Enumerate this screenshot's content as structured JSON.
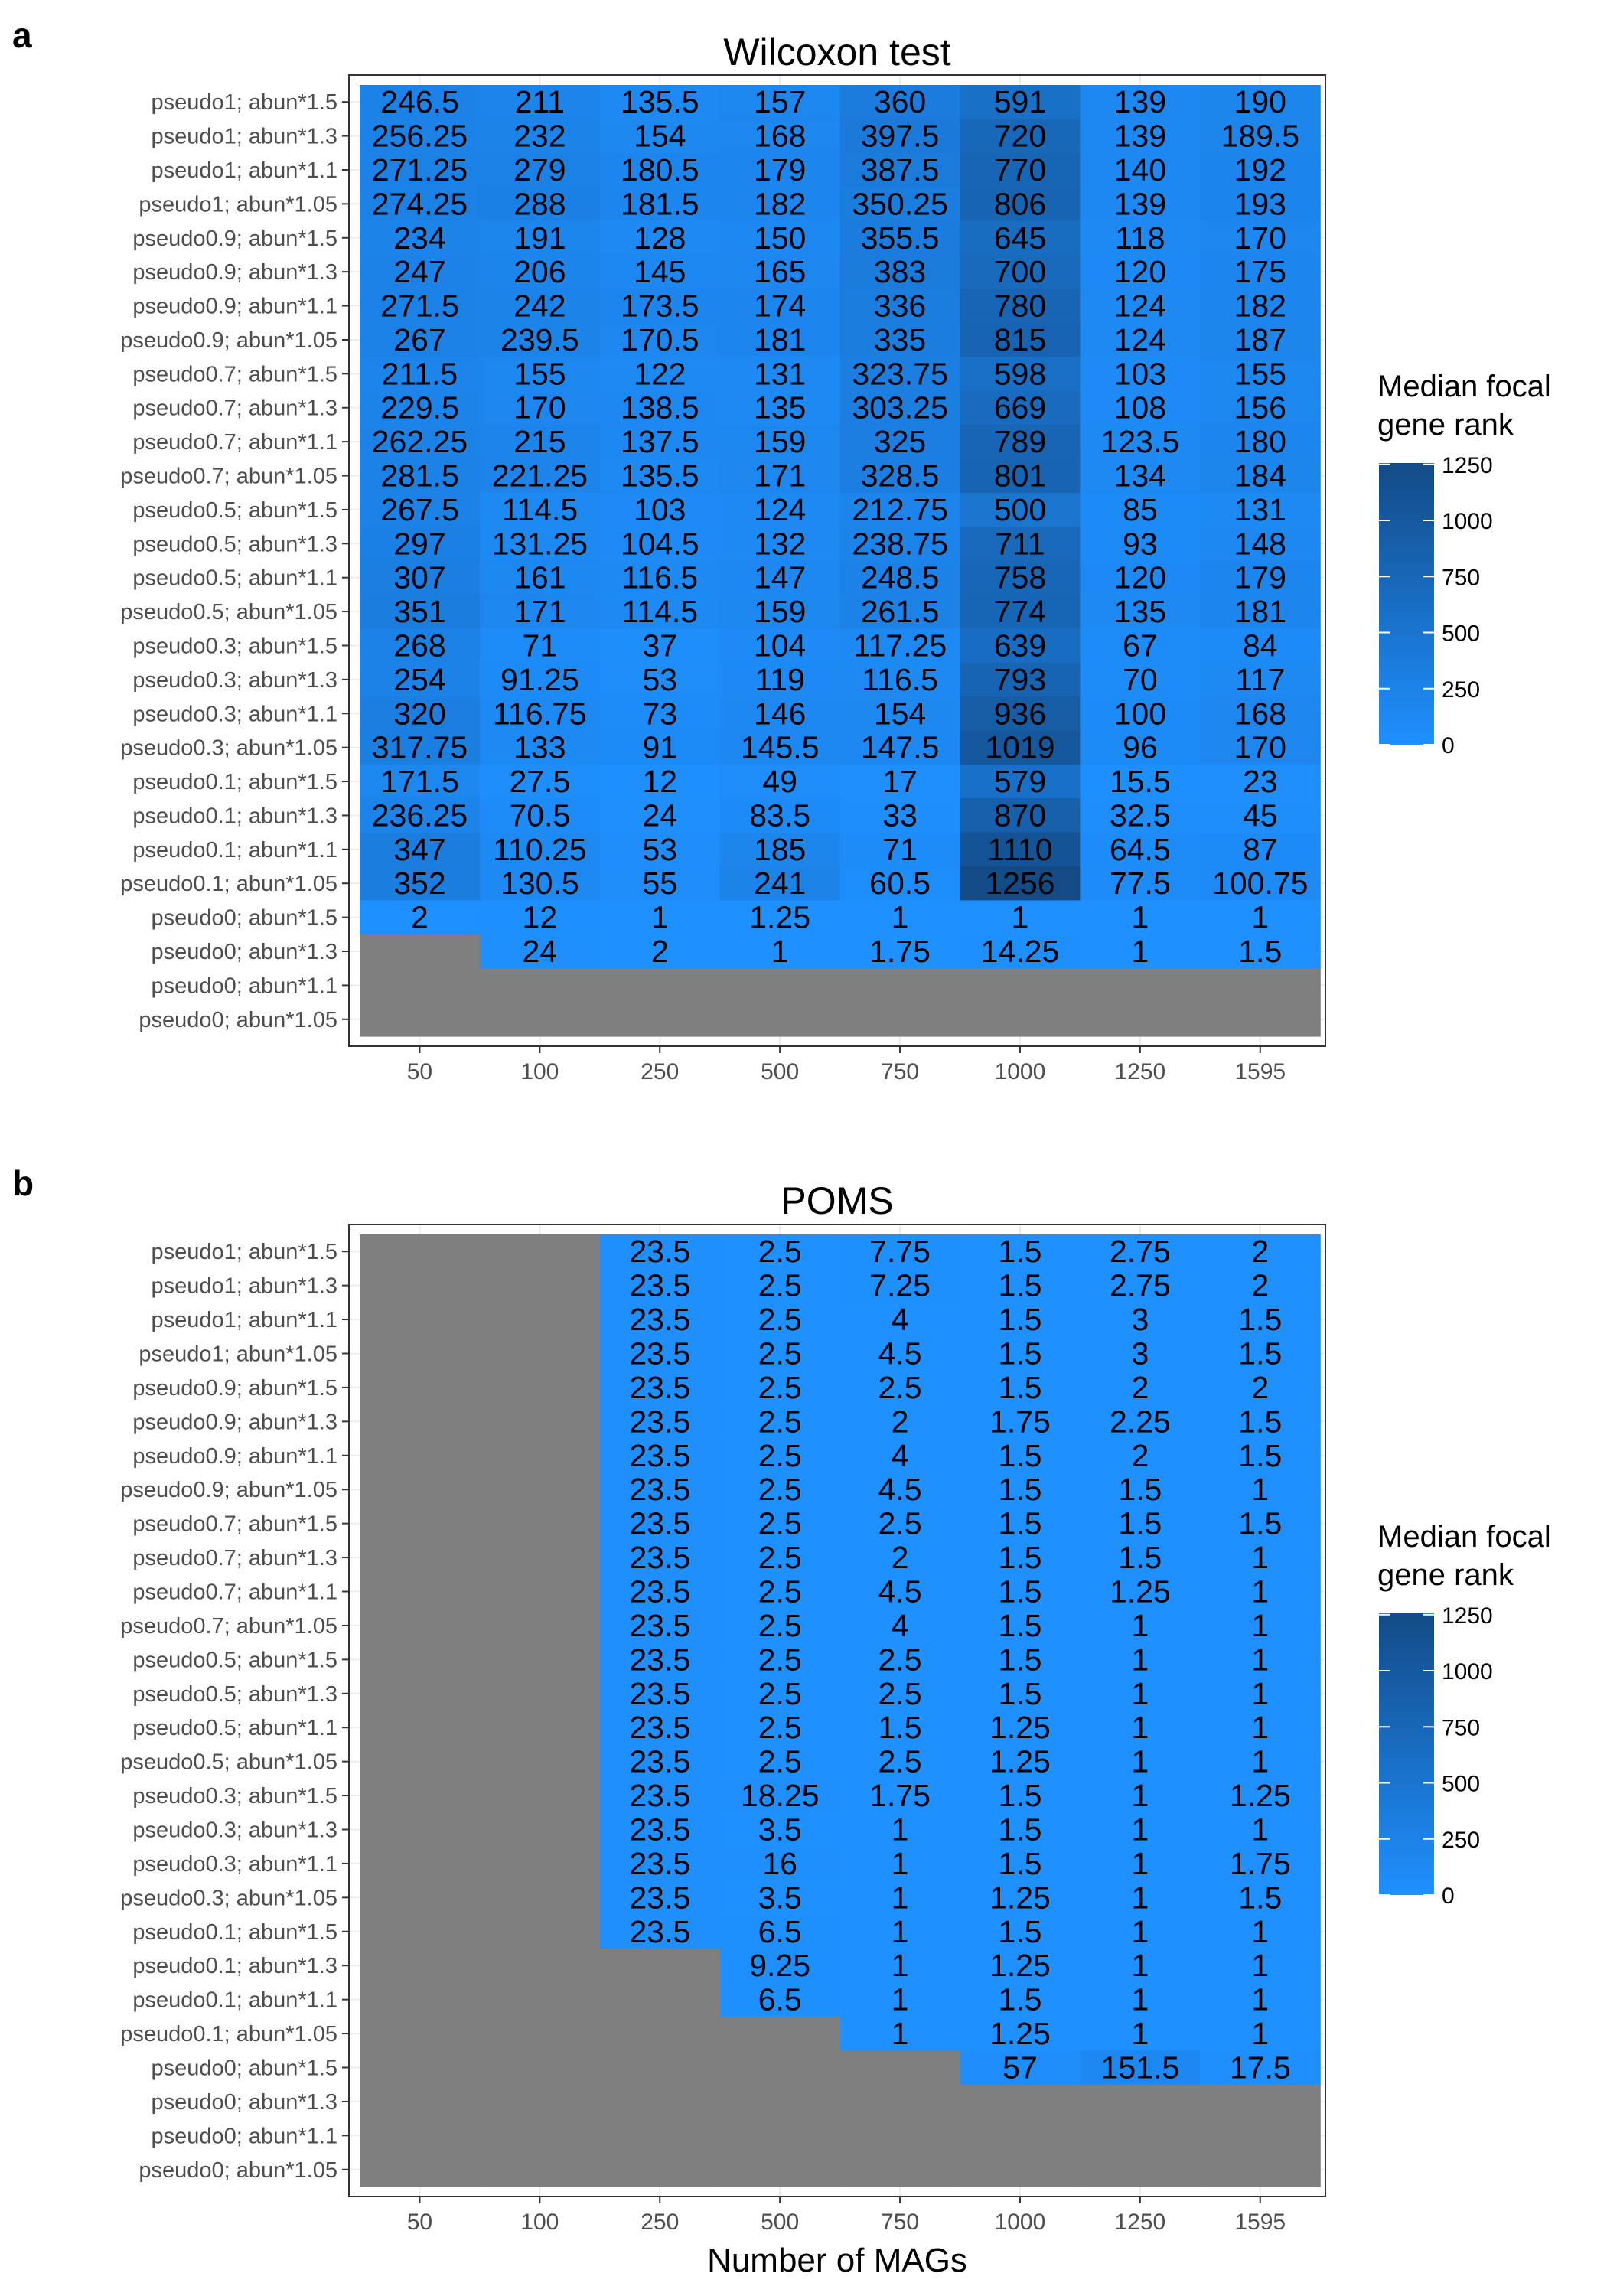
{
  "chart_data": [
    {
      "type": "heatmap",
      "panel": "a",
      "title": "Wilcoxon test",
      "xlabel": "",
      "x_categories": [
        "50",
        "100",
        "250",
        "500",
        "750",
        "1000",
        "1250",
        "1595"
      ],
      "y_categories": [
        "pseudo1; abun*1.5",
        "pseudo1; abun*1.3",
        "pseudo1; abun*1.1",
        "pseudo1; abun*1.05",
        "pseudo0.9; abun*1.5",
        "pseudo0.9; abun*1.3",
        "pseudo0.9; abun*1.1",
        "pseudo0.9; abun*1.05",
        "pseudo0.7; abun*1.5",
        "pseudo0.7; abun*1.3",
        "pseudo0.7; abun*1.1",
        "pseudo0.7; abun*1.05",
        "pseudo0.5; abun*1.5",
        "pseudo0.5; abun*1.3",
        "pseudo0.5; abun*1.1",
        "pseudo0.5; abun*1.05",
        "pseudo0.3; abun*1.5",
        "pseudo0.3; abun*1.3",
        "pseudo0.3; abun*1.1",
        "pseudo0.3; abun*1.05",
        "pseudo0.1; abun*1.5",
        "pseudo0.1; abun*1.3",
        "pseudo0.1; abun*1.1",
        "pseudo0.1; abun*1.05",
        "pseudo0; abun*1.5",
        "pseudo0; abun*1.3",
        "pseudo0; abun*1.1",
        "pseudo0; abun*1.05"
      ],
      "values": [
        [
          "246.5",
          "211",
          "135.5",
          "157",
          "360",
          "591",
          "139",
          "190"
        ],
        [
          "256.25",
          "232",
          "154",
          "168",
          "397.5",
          "720",
          "139",
          "189.5"
        ],
        [
          "271.25",
          "279",
          "180.5",
          "179",
          "387.5",
          "770",
          "140",
          "192"
        ],
        [
          "274.25",
          "288",
          "181.5",
          "182",
          "350.25",
          "806",
          "139",
          "193"
        ],
        [
          "234",
          "191",
          "128",
          "150",
          "355.5",
          "645",
          "118",
          "170"
        ],
        [
          "247",
          "206",
          "145",
          "165",
          "383",
          "700",
          "120",
          "175"
        ],
        [
          "271.5",
          "242",
          "173.5",
          "174",
          "336",
          "780",
          "124",
          "182"
        ],
        [
          "267",
          "239.5",
          "170.5",
          "181",
          "335",
          "815",
          "124",
          "187"
        ],
        [
          "211.5",
          "155",
          "122",
          "131",
          "323.75",
          "598",
          "103",
          "155"
        ],
        [
          "229.5",
          "170",
          "138.5",
          "135",
          "303.25",
          "669",
          "108",
          "156"
        ],
        [
          "262.25",
          "215",
          "137.5",
          "159",
          "325",
          "789",
          "123.5",
          "180"
        ],
        [
          "281.5",
          "221.25",
          "135.5",
          "171",
          "328.5",
          "801",
          "134",
          "184"
        ],
        [
          "267.5",
          "114.5",
          "103",
          "124",
          "212.75",
          "500",
          "85",
          "131"
        ],
        [
          "297",
          "131.25",
          "104.5",
          "132",
          "238.75",
          "711",
          "93",
          "148"
        ],
        [
          "307",
          "161",
          "116.5",
          "147",
          "248.5",
          "758",
          "120",
          "179"
        ],
        [
          "351",
          "171",
          "114.5",
          "159",
          "261.5",
          "774",
          "135",
          "181"
        ],
        [
          "268",
          "71",
          "37",
          "104",
          "117.25",
          "639",
          "67",
          "84"
        ],
        [
          "254",
          "91.25",
          "53",
          "119",
          "116.5",
          "793",
          "70",
          "117"
        ],
        [
          "320",
          "116.75",
          "73",
          "146",
          "154",
          "936",
          "100",
          "168"
        ],
        [
          "317.75",
          "133",
          "91",
          "145.5",
          "147.5",
          "1019",
          "96",
          "170"
        ],
        [
          "171.5",
          "27.5",
          "12",
          "49",
          "17",
          "579",
          "15.5",
          "23"
        ],
        [
          "236.25",
          "70.5",
          "24",
          "83.5",
          "33",
          "870",
          "32.5",
          "45"
        ],
        [
          "347",
          "110.25",
          "53",
          "185",
          "71",
          "1110",
          "64.5",
          "87"
        ],
        [
          "352",
          "130.5",
          "55",
          "241",
          "60.5",
          "1256",
          "77.5",
          "100.75"
        ],
        [
          "2",
          "12",
          "1",
          "1.25",
          "1",
          "1",
          "1",
          "1"
        ],
        [
          null,
          "24",
          "2",
          "1",
          "1.75",
          "14.25",
          "1",
          "1.5"
        ],
        [
          null,
          null,
          null,
          null,
          null,
          null,
          null,
          null
        ],
        [
          null,
          null,
          null,
          null,
          null,
          null,
          null,
          null
        ]
      ],
      "legend": {
        "title_line1": "Median focal",
        "title_line2": "gene rank",
        "ticks": [
          "1250",
          "1000",
          "750",
          "500",
          "250",
          "0"
        ]
      }
    },
    {
      "type": "heatmap",
      "panel": "b",
      "title": "POMS",
      "xlabel": "Number of MAGs",
      "x_categories": [
        "50",
        "100",
        "250",
        "500",
        "750",
        "1000",
        "1250",
        "1595"
      ],
      "y_categories": [
        "pseudo1; abun*1.5",
        "pseudo1; abun*1.3",
        "pseudo1; abun*1.1",
        "pseudo1; abun*1.05",
        "pseudo0.9; abun*1.5",
        "pseudo0.9; abun*1.3",
        "pseudo0.9; abun*1.1",
        "pseudo0.9; abun*1.05",
        "pseudo0.7; abun*1.5",
        "pseudo0.7; abun*1.3",
        "pseudo0.7; abun*1.1",
        "pseudo0.7; abun*1.05",
        "pseudo0.5; abun*1.5",
        "pseudo0.5; abun*1.3",
        "pseudo0.5; abun*1.1",
        "pseudo0.5; abun*1.05",
        "pseudo0.3; abun*1.5",
        "pseudo0.3; abun*1.3",
        "pseudo0.3; abun*1.1",
        "pseudo0.3; abun*1.05",
        "pseudo0.1; abun*1.5",
        "pseudo0.1; abun*1.3",
        "pseudo0.1; abun*1.1",
        "pseudo0.1; abun*1.05",
        "pseudo0; abun*1.5",
        "pseudo0; abun*1.3",
        "pseudo0; abun*1.1",
        "pseudo0; abun*1.05"
      ],
      "values": [
        [
          null,
          null,
          "23.5",
          "2.5",
          "7.75",
          "1.5",
          "2.75",
          "2"
        ],
        [
          null,
          null,
          "23.5",
          "2.5",
          "7.25",
          "1.5",
          "2.75",
          "2"
        ],
        [
          null,
          null,
          "23.5",
          "2.5",
          "4",
          "1.5",
          "3",
          "1.5"
        ],
        [
          null,
          null,
          "23.5",
          "2.5",
          "4.5",
          "1.5",
          "3",
          "1.5"
        ],
        [
          null,
          null,
          "23.5",
          "2.5",
          "2.5",
          "1.5",
          "2",
          "2"
        ],
        [
          null,
          null,
          "23.5",
          "2.5",
          "2",
          "1.75",
          "2.25",
          "1.5"
        ],
        [
          null,
          null,
          "23.5",
          "2.5",
          "4",
          "1.5",
          "2",
          "1.5"
        ],
        [
          null,
          null,
          "23.5",
          "2.5",
          "4.5",
          "1.5",
          "1.5",
          "1"
        ],
        [
          null,
          null,
          "23.5",
          "2.5",
          "2.5",
          "1.5",
          "1.5",
          "1.5"
        ],
        [
          null,
          null,
          "23.5",
          "2.5",
          "2",
          "1.5",
          "1.5",
          "1"
        ],
        [
          null,
          null,
          "23.5",
          "2.5",
          "4.5",
          "1.5",
          "1.25",
          "1"
        ],
        [
          null,
          null,
          "23.5",
          "2.5",
          "4",
          "1.5",
          "1",
          "1"
        ],
        [
          null,
          null,
          "23.5",
          "2.5",
          "2.5",
          "1.5",
          "1",
          "1"
        ],
        [
          null,
          null,
          "23.5",
          "2.5",
          "2.5",
          "1.5",
          "1",
          "1"
        ],
        [
          null,
          null,
          "23.5",
          "2.5",
          "1.5",
          "1.25",
          "1",
          "1"
        ],
        [
          null,
          null,
          "23.5",
          "2.5",
          "2.5",
          "1.25",
          "1",
          "1"
        ],
        [
          null,
          null,
          "23.5",
          "18.25",
          "1.75",
          "1.5",
          "1",
          "1.25"
        ],
        [
          null,
          null,
          "23.5",
          "3.5",
          "1",
          "1.5",
          "1",
          "1"
        ],
        [
          null,
          null,
          "23.5",
          "16",
          "1",
          "1.5",
          "1",
          "1.75"
        ],
        [
          null,
          null,
          "23.5",
          "3.5",
          "1",
          "1.25",
          "1",
          "1.5"
        ],
        [
          null,
          null,
          "23.5",
          "6.5",
          "1",
          "1.5",
          "1",
          "1"
        ],
        [
          null,
          null,
          null,
          "9.25",
          "1",
          "1.25",
          "1",
          "1"
        ],
        [
          null,
          null,
          null,
          "6.5",
          "1",
          "1.5",
          "1",
          "1"
        ],
        [
          null,
          null,
          null,
          null,
          "1",
          "1.25",
          "1",
          "1"
        ],
        [
          null,
          null,
          null,
          null,
          null,
          "57",
          "151.5",
          "17.5"
        ],
        [
          null,
          null,
          null,
          null,
          null,
          null,
          null,
          null
        ],
        [
          null,
          null,
          null,
          null,
          null,
          null,
          null,
          null
        ],
        [
          null,
          null,
          null,
          null,
          null,
          null,
          null,
          null
        ]
      ],
      "legend": {
        "title_line1": "Median focal",
        "title_line2": "gene rank",
        "ticks": [
          "1250",
          "1000",
          "750",
          "500",
          "250",
          "0"
        ]
      }
    }
  ],
  "colors": {
    "low": "#1e90ff",
    "high": "#134b87",
    "missing": "#7f7f7f",
    "grid": "#ebebeb",
    "frame": "#333333"
  }
}
